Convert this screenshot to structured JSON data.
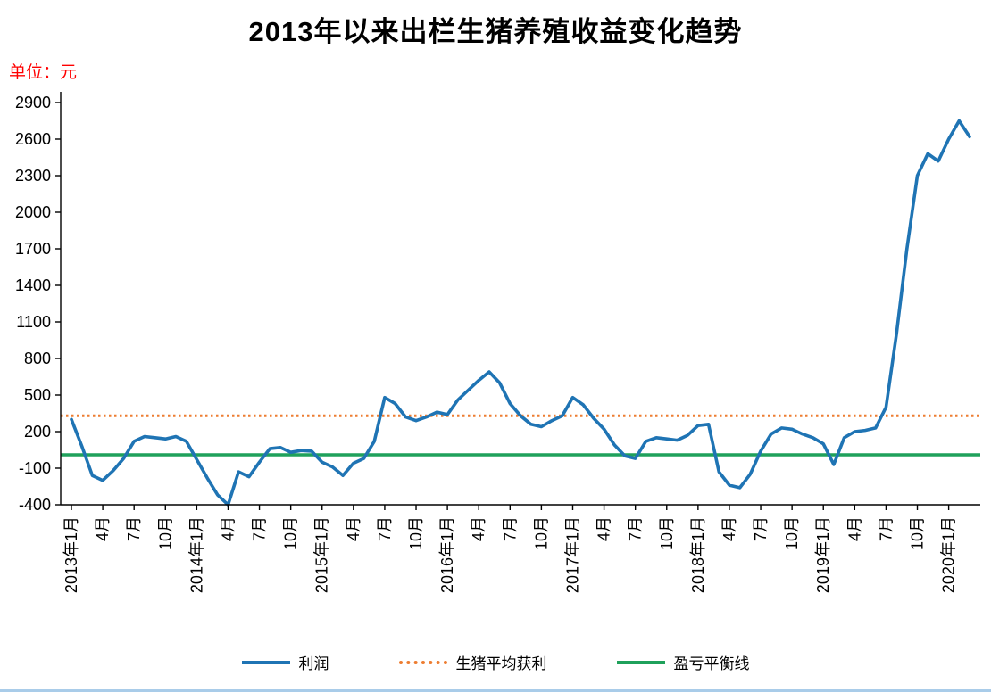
{
  "title": "2013年以来出栏生猪养殖收益变化趋势",
  "unit_label": "单位：元",
  "legend": {
    "profit": "利润",
    "average": "生猪平均获利",
    "breakeven": "盈亏平衡线"
  },
  "colors": {
    "profit_line": "#1f74b4",
    "average_line": "#ed7d31",
    "breakeven_line": "#1fa15b",
    "unit_label": "#ff0000",
    "axis": "#000000",
    "bottom_strip": "#a9cce9"
  },
  "chart_data": {
    "type": "line",
    "title": "2013年以来出栏生猪养殖收益变化趋势",
    "ylabel": "单位：元",
    "ylim": [
      -400,
      2900
    ],
    "y_ticks": [
      2900,
      2600,
      2300,
      2000,
      1700,
      1400,
      1100,
      800,
      500,
      200,
      -100,
      -400
    ],
    "grid": false,
    "legend_position": "bottom",
    "x_tick_every": 3,
    "x_tick_labels": [
      "2013年1月",
      "4月",
      "7月",
      "10月",
      "2014年1月",
      "4月",
      "7月",
      "10月",
      "2015年1月",
      "4月",
      "7月",
      "10月",
      "2016年1月",
      "4月",
      "7月",
      "10月",
      "2017年1月",
      "4月",
      "7月",
      "10月",
      "2018年1月",
      "4月",
      "7月",
      "10月",
      "2019年1月",
      "4月",
      "7月",
      "10月",
      "2020年1月"
    ],
    "series": [
      {
        "name": "利润",
        "type": "line",
        "color": "#1f74b4",
        "values": [
          300,
          80,
          -160,
          -200,
          -120,
          -20,
          120,
          160,
          150,
          140,
          160,
          120,
          -30,
          -180,
          -320,
          -400,
          -130,
          -170,
          -50,
          60,
          70,
          30,
          45,
          40,
          -50,
          -90,
          -160,
          -60,
          -20,
          120,
          480,
          430,
          320,
          290,
          320,
          360,
          340,
          460,
          540,
          620,
          690,
          600,
          430,
          330,
          260,
          240,
          290,
          330,
          480,
          420,
          310,
          220,
          90,
          0,
          -20,
          120,
          150,
          140,
          130,
          170,
          250,
          260,
          -130,
          -240,
          -260,
          -150,
          40,
          180,
          230,
          220,
          180,
          150,
          100,
          -70,
          150,
          200,
          210,
          230,
          400,
          1000,
          1700,
          2300,
          2480,
          2420,
          2600,
          2750,
          2620
        ]
      },
      {
        "name": "生猪平均获利",
        "type": "hline",
        "style": "dotted",
        "color": "#ed7d31",
        "value": 330
      },
      {
        "name": "盈亏平衡线",
        "type": "hline",
        "style": "solid",
        "color": "#1fa15b",
        "value": 10
      }
    ]
  }
}
